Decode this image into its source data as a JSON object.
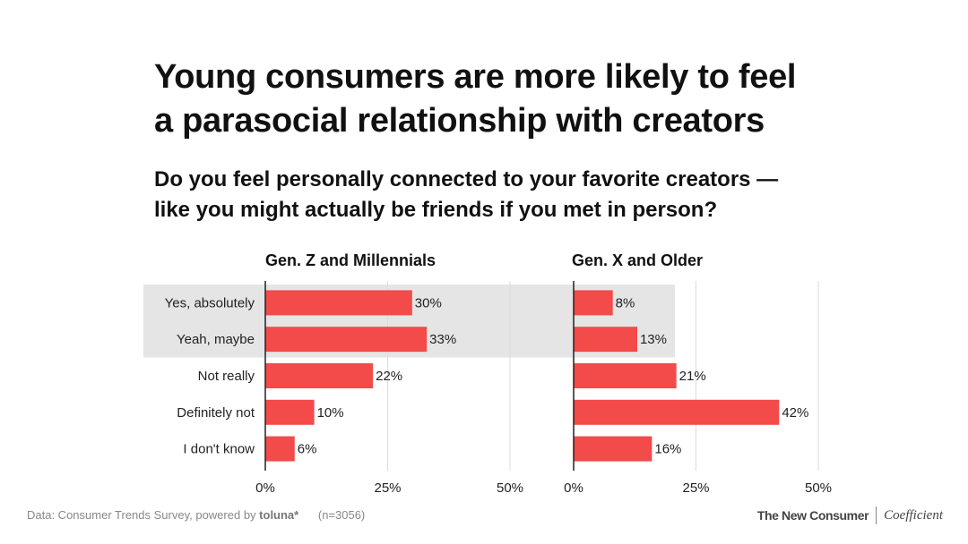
{
  "title_lines": [
    "Young consumers are more likely to feel",
    "a parasocial relationship with creators"
  ],
  "subtitle_lines": [
    "Do you feel personally connected to your favorite creators —",
    "like you might actually be friends if you met in person?"
  ],
  "footer": {
    "source_prefix": "Data: Consumer Trends Survey, powered by",
    "source_brand": "toluna*",
    "sample": "(n=3056)",
    "logo_left": "The New Consumer",
    "logo_right": "Coefficient"
  },
  "colors": {
    "bar": "#f34a4a",
    "highlight": "#e5e5e5",
    "grid": "#dcdcdc",
    "axis": "#222222"
  },
  "chart_data": {
    "type": "bar",
    "orientation": "horizontal",
    "categories": [
      "Yes, absolutely",
      "Yeah, maybe",
      "Not really",
      "Definitely not",
      "I don't know"
    ],
    "highlighted_categories": [
      "Yes, absolutely",
      "Yeah, maybe"
    ],
    "series": [
      {
        "name": "Gen. Z and Millennials",
        "values": [
          30,
          33,
          22,
          10,
          6
        ]
      },
      {
        "name": "Gen. X and Older",
        "values": [
          8,
          13,
          21,
          42,
          16
        ]
      }
    ],
    "value_suffix": "%",
    "xlim": [
      0,
      50
    ],
    "xticks": [
      0,
      25,
      50
    ],
    "xtick_labels": [
      "0%",
      "25%",
      "50%"
    ],
    "grid": true
  }
}
